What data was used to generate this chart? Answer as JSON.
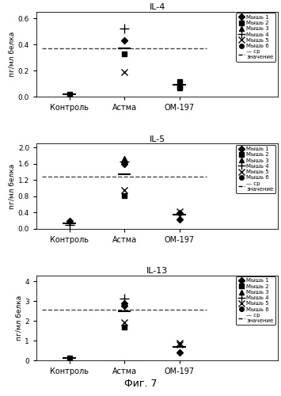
{
  "panels": [
    {
      "title": "IL-4",
      "ylabel": "пг/мл белка",
      "ylim": [
        0,
        0.65
      ],
      "yticks": [
        0.0,
        0.2,
        0.4,
        0.6
      ],
      "mean_line": 0.37,
      "groups": {
        "Контроль": {
          "x": 1,
          "points": [
            {
              "marker": "s",
              "value": 0.02,
              "ms": 4
            }
          ]
        },
        "Астма": {
          "x": 2,
          "points": [
            {
              "marker": "+",
              "value": 0.52,
              "ms": 9
            },
            {
              "marker": "D",
              "value": 0.43,
              "ms": 4
            },
            {
              "marker": "s",
              "value": 0.33,
              "ms": 4
            },
            {
              "marker": "x",
              "value": 0.19,
              "ms": 6
            }
          ]
        },
        "ОМ-197": {
          "x": 3,
          "points": [
            {
              "marker": "s",
              "value": 0.12,
              "ms": 4
            },
            {
              "marker": "s",
              "value": 0.08,
              "ms": 4
            },
            {
              "marker": "s",
              "value": 0.07,
              "ms": 4
            }
          ]
        }
      },
      "mean_ticks": {
        "Контроль": 0.02,
        "Астма": 0.37,
        "ОМ-197": 0.09
      }
    },
    {
      "title": "IL-5",
      "ylabel": "пг/мл белка",
      "ylim": [
        0,
        2.1
      ],
      "yticks": [
        0.0,
        0.4,
        0.8,
        1.2,
        1.6,
        2.0
      ],
      "mean_line": 1.28,
      "groups": {
        "Контроль": {
          "x": 1,
          "points": [
            {
              "marker": "D",
              "value": 0.18,
              "ms": 4
            },
            {
              "marker": "+",
              "value": 0.1,
              "ms": 9
            }
          ]
        },
        "Астма": {
          "x": 2,
          "points": [
            {
              "marker": "^",
              "value": 1.72,
              "ms": 6
            },
            {
              "marker": "+",
              "value": 1.65,
              "ms": 9
            },
            {
              "marker": "D",
              "value": 1.6,
              "ms": 4
            },
            {
              "marker": "x",
              "value": 0.95,
              "ms": 6
            },
            {
              "marker": "s",
              "value": 0.82,
              "ms": 4
            }
          ]
        },
        "ОМ-197": {
          "x": 3,
          "points": [
            {
              "marker": "x",
              "value": 0.42,
              "ms": 6
            },
            {
              "marker": "D",
              "value": 0.38,
              "ms": 4
            },
            {
              "marker": "D",
              "value": 0.22,
              "ms": 4
            }
          ]
        }
      },
      "mean_ticks": {
        "Контроль": 0.14,
        "Астма": 1.35,
        "ОМ-197": 0.34
      }
    },
    {
      "title": "IL-13",
      "ylabel": "пг/мл белка",
      "ylim": [
        0,
        4.3
      ],
      "yticks": [
        0.0,
        1.0,
        2.0,
        3.0,
        4.0
      ],
      "mean_line": 2.55,
      "groups": {
        "Контроль": {
          "x": 1,
          "points": [
            {
              "marker": "s",
              "value": 0.12,
              "ms": 4
            }
          ]
        },
        "Астма": {
          "x": 2,
          "points": [
            {
              "marker": "+",
              "value": 3.12,
              "ms": 9
            },
            {
              "marker": "D",
              "value": 2.88,
              "ms": 4
            },
            {
              "marker": "D",
              "value": 2.75,
              "ms": 4
            },
            {
              "marker": "x",
              "value": 1.92,
              "ms": 6
            },
            {
              "marker": "s",
              "value": 1.7,
              "ms": 4
            }
          ]
        },
        "ОМ-197": {
          "x": 3,
          "points": [
            {
              "marker": "x",
              "value": 0.88,
              "ms": 6
            },
            {
              "marker": "x",
              "value": 0.8,
              "ms": 6
            },
            {
              "marker": "D",
              "value": 0.42,
              "ms": 4
            }
          ]
        }
      },
      "mean_ticks": {
        "Контроль": 0.12,
        "Астма": 2.47,
        "ОМ-197": 0.7
      }
    }
  ],
  "legend_entries": [
    {
      "label": "Мышь 1",
      "marker": "D",
      "ms": 4,
      "filled": true
    },
    {
      "label": "Мышь 2",
      "marker": "s",
      "ms": 4,
      "filled": true
    },
    {
      "label": "Мышь 3",
      "marker": "^",
      "ms": 5,
      "filled": true
    },
    {
      "label": "Мышь 4",
      "marker": "+",
      "ms": 7,
      "filled": false
    },
    {
      "label": "Мышь 5",
      "marker": "x",
      "ms": 6,
      "filled": false
    },
    {
      "label": "Мышь 6",
      "marker": "o",
      "ms": 4,
      "filled": true
    },
    {
      "label": "— ср\nзначение",
      "marker": null,
      "ms": 0,
      "filled": false
    }
  ],
  "fig_label": "Фиг. 7",
  "bg_color": "white",
  "dashed_color": "#444444",
  "mean_tick_color": "black"
}
